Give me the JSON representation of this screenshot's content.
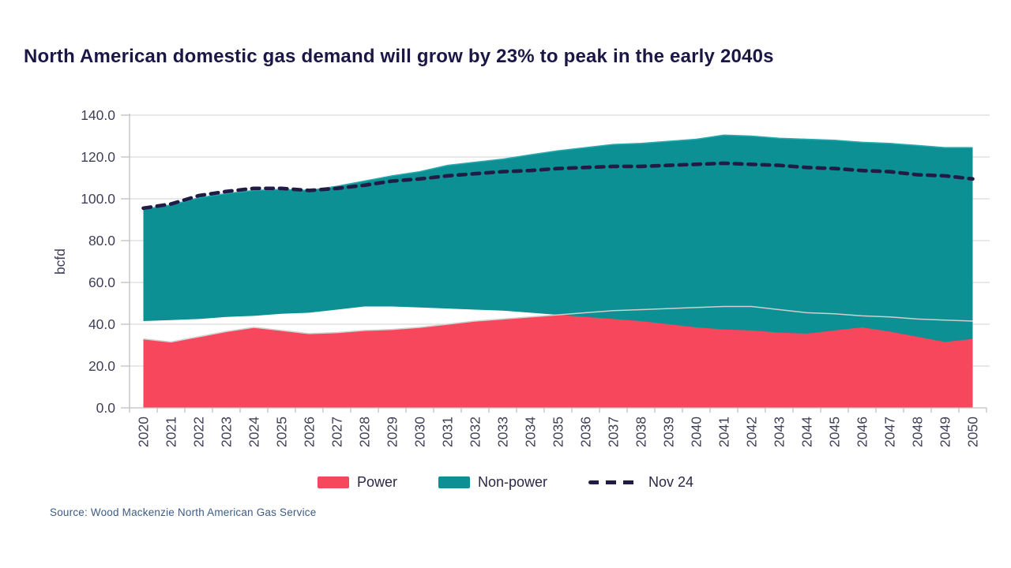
{
  "title": "North American domestic gas demand will grow by 23% to peak in the early 2040s",
  "source": "Source: Wood Mackenzie North American Gas Service",
  "legend": {
    "power_label": "Power",
    "non_power_label": "Non-power",
    "nov24_label": "Nov 24"
  },
  "colors": {
    "power": "#f6475c",
    "power_edge": "#cfcfcf",
    "non_power": "#0d9094",
    "non_power_edge": "#2aa9ae",
    "nov24_line": "#201c45",
    "grid": "#d9d9d9",
    "axis": "#bfbfbf",
    "tick_label": "#3f3f58",
    "title_color": "#1a1745",
    "source_color": "#3e5c85"
  },
  "chart_data": {
    "type": "area",
    "stacked": true,
    "title": "North American domestic gas demand will grow by 23% to peak in the early 2040s",
    "xlabel": "",
    "ylabel": "bcfd",
    "ylim": [
      0,
      140
    ],
    "y_ticks": [
      0,
      20,
      40,
      60,
      80,
      100,
      120,
      140
    ],
    "grid": true,
    "legend_position": "bottom",
    "x": [
      2020,
      2021,
      2022,
      2023,
      2024,
      2025,
      2026,
      2027,
      2028,
      2029,
      2030,
      2031,
      2032,
      2033,
      2034,
      2035,
      2036,
      2037,
      2038,
      2039,
      2040,
      2041,
      2042,
      2043,
      2044,
      2045,
      2046,
      2047,
      2048,
      2049,
      2050
    ],
    "series": [
      {
        "name": "Power",
        "color": "#f6475c",
        "values": [
          33,
          31.5,
          34,
          36.5,
          38.5,
          37,
          35.5,
          36,
          37,
          37.5,
          38.5,
          40,
          41.5,
          42.5,
          43.5,
          44.5,
          45.5,
          46.5,
          47,
          47.5,
          48,
          48.5,
          48.5,
          47,
          45.5,
          45,
          44,
          43.5,
          42.5,
          42,
          41.5
        ]
      },
      {
        "name": "Non-power",
        "color": "#0d9094",
        "values": [
          62,
          65.5,
          66.5,
          66,
          65.5,
          67.5,
          68.5,
          70,
          71.5,
          73.5,
          74.5,
          76,
          76,
          76.5,
          77.5,
          78.5,
          79,
          79.5,
          79.5,
          80,
          80.5,
          82,
          81.5,
          82,
          83,
          83,
          83,
          83,
          83,
          82.5,
          83
        ]
      }
    ],
    "line_series": [
      {
        "name": "Nov 24",
        "style": "dashed",
        "color": "#201c45",
        "values": [
          95.5,
          97.5,
          101.5,
          103.5,
          105,
          105,
          104,
          105,
          106.5,
          108.5,
          109.5,
          111,
          112,
          113,
          113.5,
          114.5,
          115,
          115.5,
          115.5,
          116,
          116.5,
          117,
          116.5,
          116,
          115,
          114.5,
          113.5,
          113,
          111.5,
          111,
          109.5
        ]
      }
    ]
  }
}
